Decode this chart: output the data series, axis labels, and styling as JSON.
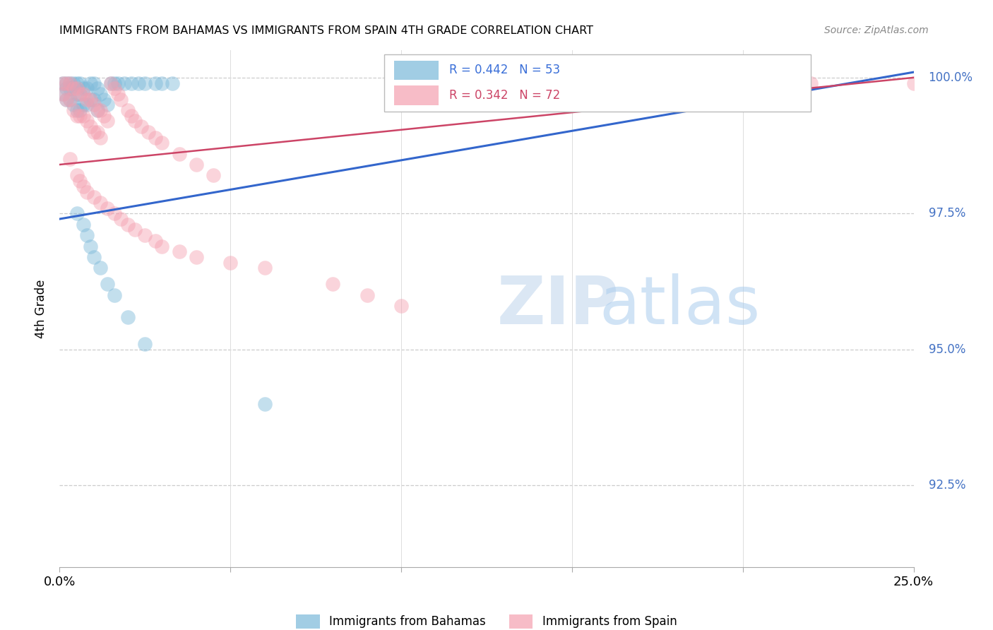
{
  "title": "IMMIGRANTS FROM BAHAMAS VS IMMIGRANTS FROM SPAIN 4TH GRADE CORRELATION CHART",
  "source": "Source: ZipAtlas.com",
  "ylabel": "4th Grade",
  "ytick_labels": [
    "92.5%",
    "95.0%",
    "97.5%",
    "100.0%"
  ],
  "ytick_values": [
    0.925,
    0.95,
    0.975,
    1.0
  ],
  "xlim": [
    0.0,
    0.25
  ],
  "ylim": [
    0.91,
    1.005
  ],
  "legend_blue_r": "0.442",
  "legend_blue_n": "53",
  "legend_pink_r": "0.342",
  "legend_pink_n": "72",
  "blue_color": "#7ab8d9",
  "pink_color": "#f4a0b0",
  "trend_blue": "#3366cc",
  "trend_pink": "#cc4466",
  "blue_x": [
    0.001,
    0.001,
    0.002,
    0.002,
    0.002,
    0.003,
    0.003,
    0.003,
    0.004,
    0.004,
    0.004,
    0.005,
    0.005,
    0.005,
    0.006,
    0.006,
    0.006,
    0.007,
    0.007,
    0.008,
    0.008,
    0.009,
    0.009,
    0.01,
    0.01,
    0.011,
    0.011,
    0.012,
    0.013,
    0.014,
    0.015,
    0.016,
    0.017,
    0.019,
    0.021,
    0.023,
    0.025,
    0.028,
    0.03,
    0.033,
    0.005,
    0.007,
    0.008,
    0.009,
    0.01,
    0.012,
    0.014,
    0.016,
    0.02,
    0.025,
    0.06,
    0.11,
    0.12
  ],
  "blue_y": [
    0.999,
    0.997,
    0.999,
    0.998,
    0.996,
    0.999,
    0.998,
    0.996,
    0.999,
    0.998,
    0.995,
    0.999,
    0.997,
    0.994,
    0.999,
    0.997,
    0.994,
    0.998,
    0.995,
    0.998,
    0.995,
    0.999,
    0.996,
    0.999,
    0.996,
    0.998,
    0.994,
    0.997,
    0.996,
    0.995,
    0.999,
    0.999,
    0.999,
    0.999,
    0.999,
    0.999,
    0.999,
    0.999,
    0.999,
    0.999,
    0.975,
    0.973,
    0.971,
    0.969,
    0.967,
    0.965,
    0.962,
    0.96,
    0.956,
    0.951,
    0.94,
    0.999,
    0.999
  ],
  "pink_x": [
    0.001,
    0.001,
    0.002,
    0.002,
    0.003,
    0.003,
    0.004,
    0.004,
    0.005,
    0.005,
    0.006,
    0.006,
    0.007,
    0.007,
    0.008,
    0.008,
    0.009,
    0.009,
    0.01,
    0.01,
    0.011,
    0.011,
    0.012,
    0.012,
    0.013,
    0.014,
    0.015,
    0.016,
    0.017,
    0.018,
    0.02,
    0.021,
    0.022,
    0.024,
    0.026,
    0.028,
    0.03,
    0.035,
    0.04,
    0.045,
    0.003,
    0.005,
    0.006,
    0.007,
    0.008,
    0.01,
    0.012,
    0.014,
    0.016,
    0.018,
    0.02,
    0.022,
    0.025,
    0.028,
    0.03,
    0.035,
    0.04,
    0.05,
    0.06,
    0.08,
    0.09,
    0.1,
    0.13,
    0.14,
    0.15,
    0.16,
    0.17,
    0.18,
    0.2,
    0.21,
    0.22,
    0.25
  ],
  "pink_y": [
    0.999,
    0.997,
    0.999,
    0.996,
    0.999,
    0.996,
    0.998,
    0.994,
    0.998,
    0.993,
    0.997,
    0.993,
    0.997,
    0.993,
    0.996,
    0.992,
    0.996,
    0.991,
    0.995,
    0.99,
    0.994,
    0.99,
    0.994,
    0.989,
    0.993,
    0.992,
    0.999,
    0.998,
    0.997,
    0.996,
    0.994,
    0.993,
    0.992,
    0.991,
    0.99,
    0.989,
    0.988,
    0.986,
    0.984,
    0.982,
    0.985,
    0.982,
    0.981,
    0.98,
    0.979,
    0.978,
    0.977,
    0.976,
    0.975,
    0.974,
    0.973,
    0.972,
    0.971,
    0.97,
    0.969,
    0.968,
    0.967,
    0.966,
    0.965,
    0.962,
    0.96,
    0.958,
    0.999,
    0.999,
    0.999,
    0.999,
    0.999,
    0.999,
    0.999,
    0.999,
    0.999,
    0.999
  ],
  "blue_trend_x": [
    0.0,
    0.25
  ],
  "blue_trend_y": [
    0.974,
    1.001
  ],
  "pink_trend_x": [
    0.0,
    0.25
  ],
  "pink_trend_y": [
    0.984,
    1.0
  ]
}
